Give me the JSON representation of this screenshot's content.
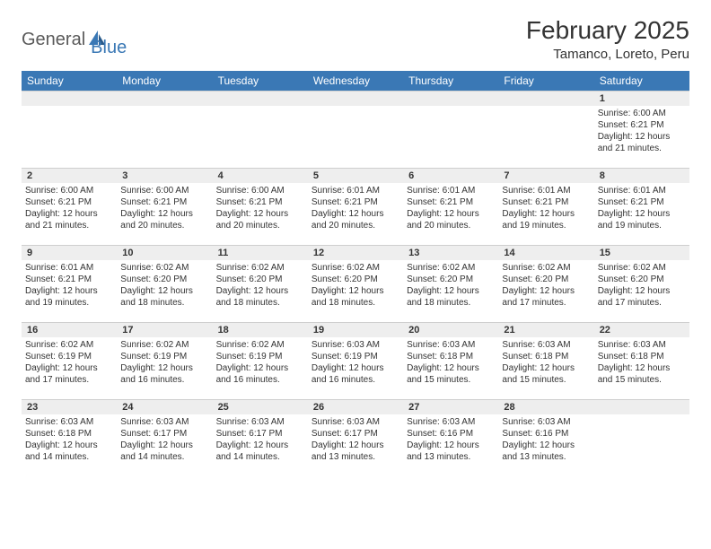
{
  "brand": {
    "part1": "General",
    "part2": "Blue"
  },
  "title": "February 2025",
  "location": "Tamanco, Loreto, Peru",
  "colors": {
    "header_bg": "#3a78b5",
    "header_text": "#ffffff",
    "daynum_bg": "#eeeeee",
    "border": "#cfcfcf",
    "text": "#333333",
    "logo_gray": "#5a5a5a",
    "logo_blue": "#3a78b5"
  },
  "weekdays": [
    "Sunday",
    "Monday",
    "Tuesday",
    "Wednesday",
    "Thursday",
    "Friday",
    "Saturday"
  ],
  "weeks": [
    [
      {
        "num": "",
        "lines": [
          "",
          "",
          "",
          ""
        ]
      },
      {
        "num": "",
        "lines": [
          "",
          "",
          "",
          ""
        ]
      },
      {
        "num": "",
        "lines": [
          "",
          "",
          "",
          ""
        ]
      },
      {
        "num": "",
        "lines": [
          "",
          "",
          "",
          ""
        ]
      },
      {
        "num": "",
        "lines": [
          "",
          "",
          "",
          ""
        ]
      },
      {
        "num": "",
        "lines": [
          "",
          "",
          "",
          ""
        ]
      },
      {
        "num": "1",
        "lines": [
          "Sunrise: 6:00 AM",
          "Sunset: 6:21 PM",
          "Daylight: 12 hours",
          "and 21 minutes."
        ]
      }
    ],
    [
      {
        "num": "2",
        "lines": [
          "Sunrise: 6:00 AM",
          "Sunset: 6:21 PM",
          "Daylight: 12 hours",
          "and 21 minutes."
        ]
      },
      {
        "num": "3",
        "lines": [
          "Sunrise: 6:00 AM",
          "Sunset: 6:21 PM",
          "Daylight: 12 hours",
          "and 20 minutes."
        ]
      },
      {
        "num": "4",
        "lines": [
          "Sunrise: 6:00 AM",
          "Sunset: 6:21 PM",
          "Daylight: 12 hours",
          "and 20 minutes."
        ]
      },
      {
        "num": "5",
        "lines": [
          "Sunrise: 6:01 AM",
          "Sunset: 6:21 PM",
          "Daylight: 12 hours",
          "and 20 minutes."
        ]
      },
      {
        "num": "6",
        "lines": [
          "Sunrise: 6:01 AM",
          "Sunset: 6:21 PM",
          "Daylight: 12 hours",
          "and 20 minutes."
        ]
      },
      {
        "num": "7",
        "lines": [
          "Sunrise: 6:01 AM",
          "Sunset: 6:21 PM",
          "Daylight: 12 hours",
          "and 19 minutes."
        ]
      },
      {
        "num": "8",
        "lines": [
          "Sunrise: 6:01 AM",
          "Sunset: 6:21 PM",
          "Daylight: 12 hours",
          "and 19 minutes."
        ]
      }
    ],
    [
      {
        "num": "9",
        "lines": [
          "Sunrise: 6:01 AM",
          "Sunset: 6:21 PM",
          "Daylight: 12 hours",
          "and 19 minutes."
        ]
      },
      {
        "num": "10",
        "lines": [
          "Sunrise: 6:02 AM",
          "Sunset: 6:20 PM",
          "Daylight: 12 hours",
          "and 18 minutes."
        ]
      },
      {
        "num": "11",
        "lines": [
          "Sunrise: 6:02 AM",
          "Sunset: 6:20 PM",
          "Daylight: 12 hours",
          "and 18 minutes."
        ]
      },
      {
        "num": "12",
        "lines": [
          "Sunrise: 6:02 AM",
          "Sunset: 6:20 PM",
          "Daylight: 12 hours",
          "and 18 minutes."
        ]
      },
      {
        "num": "13",
        "lines": [
          "Sunrise: 6:02 AM",
          "Sunset: 6:20 PM",
          "Daylight: 12 hours",
          "and 18 minutes."
        ]
      },
      {
        "num": "14",
        "lines": [
          "Sunrise: 6:02 AM",
          "Sunset: 6:20 PM",
          "Daylight: 12 hours",
          "and 17 minutes."
        ]
      },
      {
        "num": "15",
        "lines": [
          "Sunrise: 6:02 AM",
          "Sunset: 6:20 PM",
          "Daylight: 12 hours",
          "and 17 minutes."
        ]
      }
    ],
    [
      {
        "num": "16",
        "lines": [
          "Sunrise: 6:02 AM",
          "Sunset: 6:19 PM",
          "Daylight: 12 hours",
          "and 17 minutes."
        ]
      },
      {
        "num": "17",
        "lines": [
          "Sunrise: 6:02 AM",
          "Sunset: 6:19 PM",
          "Daylight: 12 hours",
          "and 16 minutes."
        ]
      },
      {
        "num": "18",
        "lines": [
          "Sunrise: 6:02 AM",
          "Sunset: 6:19 PM",
          "Daylight: 12 hours",
          "and 16 minutes."
        ]
      },
      {
        "num": "19",
        "lines": [
          "Sunrise: 6:03 AM",
          "Sunset: 6:19 PM",
          "Daylight: 12 hours",
          "and 16 minutes."
        ]
      },
      {
        "num": "20",
        "lines": [
          "Sunrise: 6:03 AM",
          "Sunset: 6:18 PM",
          "Daylight: 12 hours",
          "and 15 minutes."
        ]
      },
      {
        "num": "21",
        "lines": [
          "Sunrise: 6:03 AM",
          "Sunset: 6:18 PM",
          "Daylight: 12 hours",
          "and 15 minutes."
        ]
      },
      {
        "num": "22",
        "lines": [
          "Sunrise: 6:03 AM",
          "Sunset: 6:18 PM",
          "Daylight: 12 hours",
          "and 15 minutes."
        ]
      }
    ],
    [
      {
        "num": "23",
        "lines": [
          "Sunrise: 6:03 AM",
          "Sunset: 6:18 PM",
          "Daylight: 12 hours",
          "and 14 minutes."
        ]
      },
      {
        "num": "24",
        "lines": [
          "Sunrise: 6:03 AM",
          "Sunset: 6:17 PM",
          "Daylight: 12 hours",
          "and 14 minutes."
        ]
      },
      {
        "num": "25",
        "lines": [
          "Sunrise: 6:03 AM",
          "Sunset: 6:17 PM",
          "Daylight: 12 hours",
          "and 14 minutes."
        ]
      },
      {
        "num": "26",
        "lines": [
          "Sunrise: 6:03 AM",
          "Sunset: 6:17 PM",
          "Daylight: 12 hours",
          "and 13 minutes."
        ]
      },
      {
        "num": "27",
        "lines": [
          "Sunrise: 6:03 AM",
          "Sunset: 6:16 PM",
          "Daylight: 12 hours",
          "and 13 minutes."
        ]
      },
      {
        "num": "28",
        "lines": [
          "Sunrise: 6:03 AM",
          "Sunset: 6:16 PM",
          "Daylight: 12 hours",
          "and 13 minutes."
        ]
      },
      {
        "num": "",
        "lines": [
          "",
          "",
          "",
          ""
        ]
      }
    ]
  ]
}
